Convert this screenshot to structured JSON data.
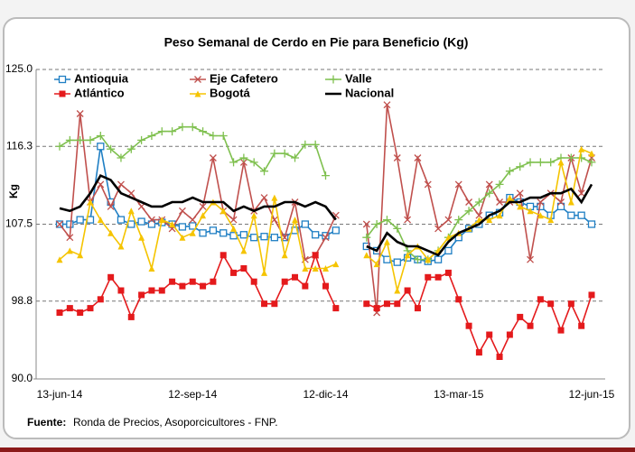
{
  "chart_data": {
    "type": "line",
    "title": "Peso Semanal de Cerdo en Pie para Beneficio (Kg)",
    "y_label": "Kg",
    "source_label": "Fuente:",
    "source_text": "Ronda de Precios, Asoporcicultores  - FNP.",
    "categories": [
      "13-jun-14",
      null,
      null,
      null,
      null,
      null,
      null,
      null,
      null,
      null,
      null,
      null,
      null,
      "12-sep-14",
      null,
      null,
      null,
      null,
      null,
      null,
      null,
      null,
      null,
      null,
      null,
      null,
      "12-dic-14",
      null,
      null,
      null,
      null,
      null,
      null,
      null,
      null,
      null,
      null,
      null,
      null,
      "13-mar-15",
      null,
      null,
      null,
      null,
      null,
      null,
      null,
      null,
      null,
      null,
      null,
      null,
      "12-jun-15"
    ],
    "ylim": [
      90,
      125
    ],
    "yticks": [
      {
        "value": 90,
        "label": "90.0"
      },
      {
        "value": 98.8,
        "label": "98.8"
      },
      {
        "value": 107.5,
        "label": "107.5"
      },
      {
        "value": 116.3,
        "label": "116.3"
      },
      {
        "value": 125,
        "label": "125.0"
      }
    ],
    "grid": true,
    "series": [
      {
        "name": "Antioquia",
        "color": "#1f7fc4",
        "marker": "open-square",
        "values": [
          107.5,
          107.5,
          108,
          108,
          116.3,
          110,
          108,
          107.5,
          107.8,
          107.5,
          107.7,
          107.5,
          107.2,
          107.3,
          106.5,
          106.8,
          106.5,
          106.2,
          106.3,
          106,
          106.1,
          106,
          106,
          106.8,
          107.5,
          106.3,
          106.2,
          106.8,
          null,
          null,
          105,
          104.5,
          103.5,
          103.2,
          103.7,
          103.5,
          103.3,
          103.5,
          104.5,
          106,
          107,
          107.5,
          108.5,
          108.8,
          110.5,
          110,
          109.5,
          109.5,
          108.5,
          109.5,
          108.5,
          108.5,
          107.5
        ]
      },
      {
        "name": "Eje Cafetero",
        "color": "#c0504d",
        "marker": "x",
        "values": [
          107.5,
          106,
          120,
          110,
          112,
          109.5,
          112,
          111,
          109.5,
          108,
          108,
          107,
          109,
          108,
          109.5,
          115,
          109,
          108,
          114.5,
          109,
          110.5,
          108,
          106,
          110,
          103.5,
          104,
          106,
          108.5,
          null,
          null,
          107.5,
          97.5,
          121,
          115,
          108,
          115,
          112,
          107,
          108,
          112,
          110,
          108.5,
          112,
          110,
          110,
          111,
          103.5,
          110,
          111,
          110,
          115,
          111,
          115
        ]
      },
      {
        "name": "Valle",
        "color": "#7fc04f",
        "marker": "plus",
        "values": [
          116.3,
          117,
          117,
          117,
          117.5,
          116,
          115,
          116,
          117,
          117.5,
          118,
          118,
          118.5,
          118.5,
          118,
          117.5,
          117.5,
          114.5,
          115,
          114.5,
          113.5,
          115.5,
          115.5,
          115,
          116.5,
          116.5,
          113,
          null,
          null,
          null,
          106,
          107.5,
          108,
          107,
          104.5,
          103.5,
          103.5,
          104.5,
          106,
          108,
          109,
          110,
          111,
          112,
          113.5,
          114,
          114.5,
          114.5,
          114.5,
          115,
          115,
          115,
          114.5
        ]
      },
      {
        "name": "Atlántico",
        "color": "#e41a1c",
        "marker": "filled-square",
        "values": [
          97.5,
          98,
          97.5,
          98,
          99,
          101.5,
          100,
          97,
          99.5,
          100,
          100,
          101,
          100.5,
          101,
          100.5,
          101,
          104,
          102,
          102.5,
          101,
          98.5,
          98.5,
          101,
          101.5,
          100.5,
          104,
          100.5,
          98,
          null,
          null,
          98.5,
          98,
          98.5,
          98.5,
          100,
          98,
          101.5,
          101.5,
          102,
          99,
          96,
          93,
          95,
          92.5,
          95,
          97,
          96,
          99,
          98.5,
          95.5,
          98.5,
          96,
          99.5
        ]
      },
      {
        "name": "Bogotá",
        "color": "#f5c400",
        "marker": "triangle",
        "values": [
          103.5,
          104.5,
          104,
          110,
          108,
          106.5,
          105,
          109,
          106,
          102.5,
          108,
          107.5,
          106,
          106.5,
          108.5,
          110,
          109,
          107,
          104.5,
          108.5,
          102,
          110.5,
          104,
          108,
          102.5,
          102.5,
          102.5,
          103,
          null,
          null,
          104,
          103,
          105.5,
          100,
          104,
          105,
          103.5,
          104.5,
          106,
          106.5,
          107,
          108,
          108,
          108.5,
          110.5,
          109.5,
          109,
          108.5,
          108,
          114.5,
          110,
          116,
          115.5
        ]
      },
      {
        "name": "Nacional",
        "color": "#000000",
        "marker": "none",
        "values": [
          109.3,
          109,
          109.5,
          111,
          113,
          112.5,
          111,
          110.5,
          110,
          109.5,
          109.5,
          110,
          110,
          110.5,
          110,
          110,
          110,
          109,
          109.5,
          109,
          109.5,
          109.5,
          110,
          110,
          109.5,
          110,
          109.5,
          108,
          null,
          null,
          105,
          104.5,
          106.5,
          105.5,
          105,
          105,
          104.5,
          104,
          105.5,
          106.5,
          107,
          107.5,
          108.5,
          109,
          110,
          110,
          110.5,
          110.5,
          111,
          111,
          111.5,
          110,
          112
        ]
      }
    ]
  }
}
